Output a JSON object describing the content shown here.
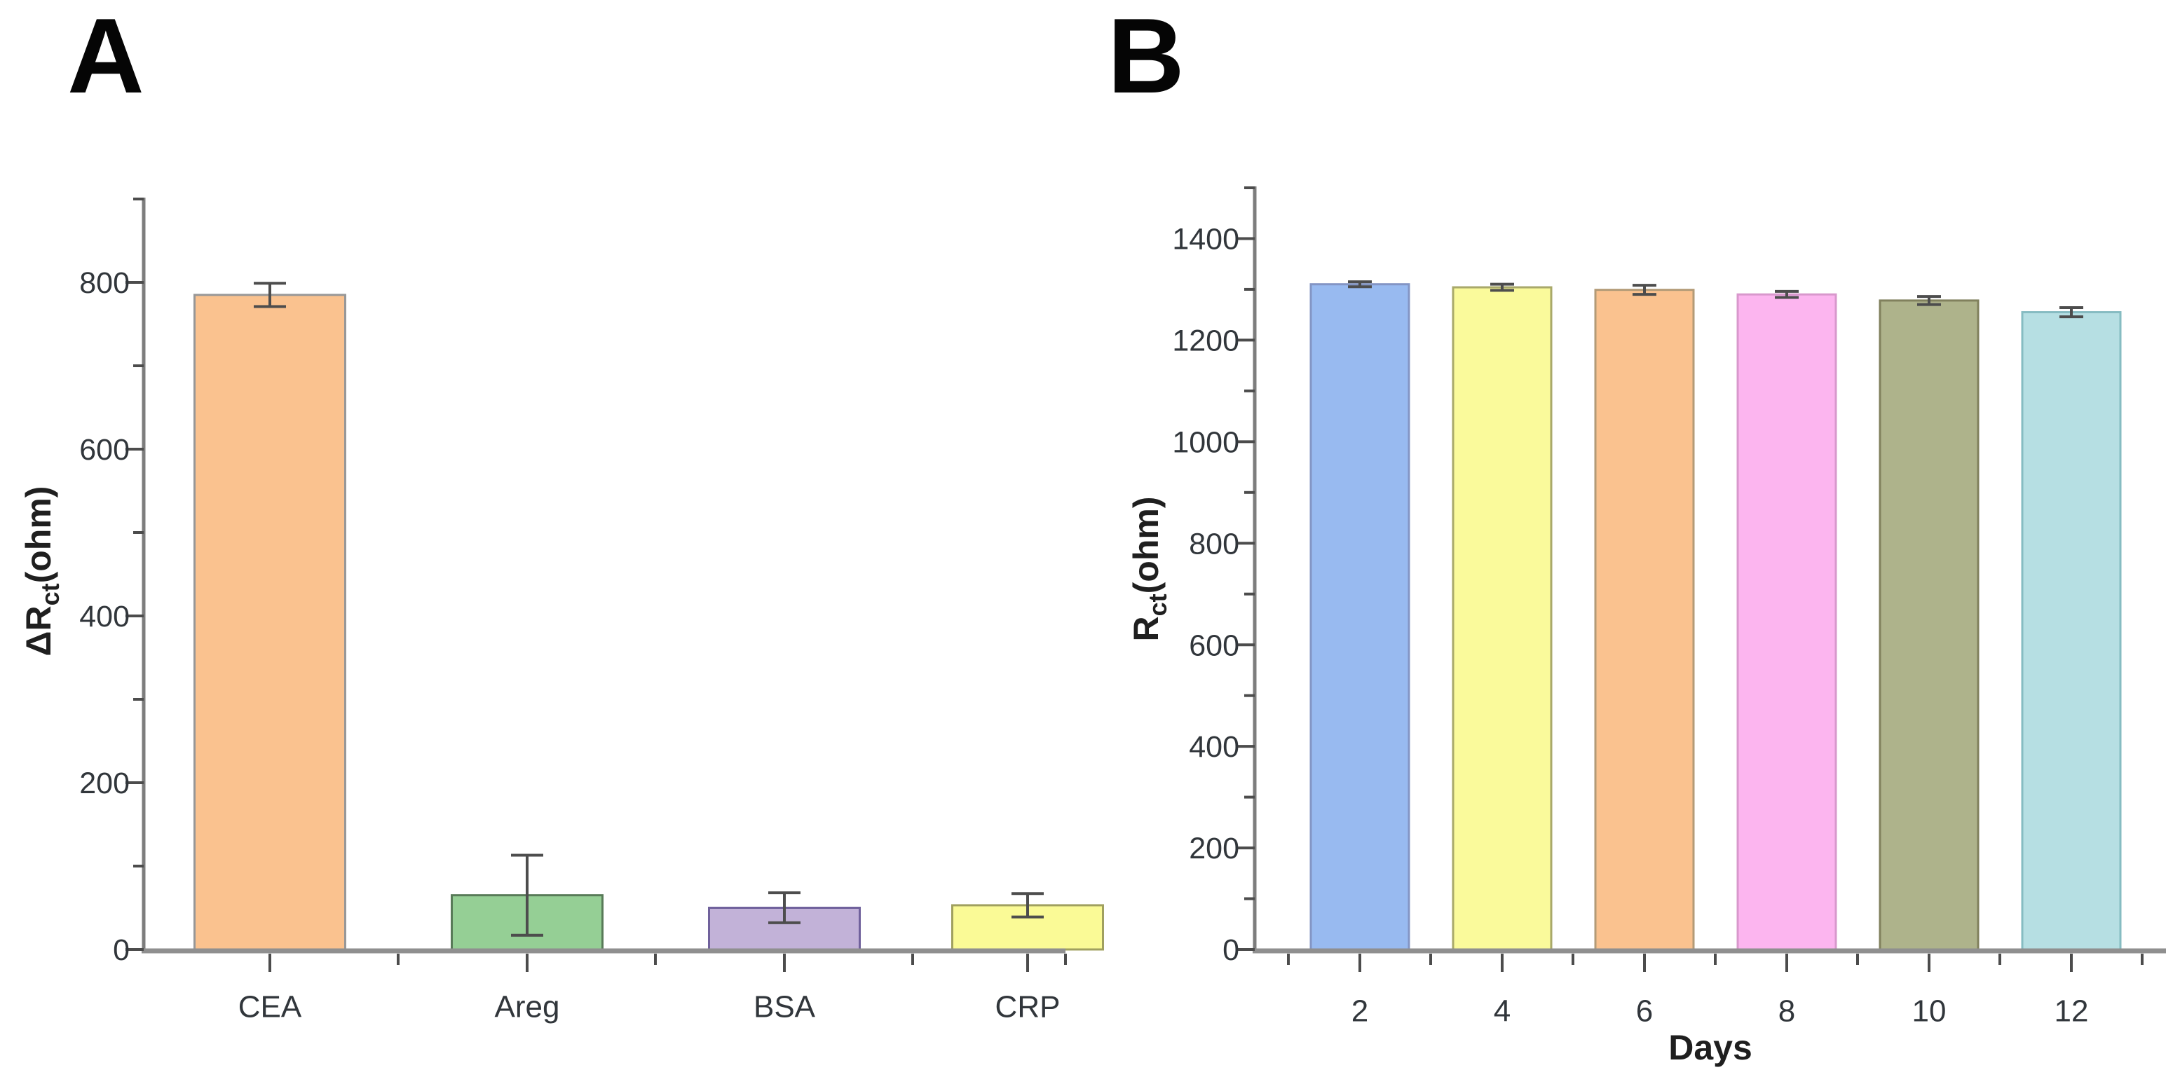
{
  "page": {
    "background": "#ffffff"
  },
  "panels": [
    {
      "label": "A"
    },
    {
      "label": "B"
    }
  ],
  "style": {
    "axis_color": "#7d7d7d",
    "baseline_color": "#8f8f8f",
    "tick_color": "#4c4c4c",
    "tick_label_color": "#31363b",
    "axis_title_color": "#1f1f1f",
    "error_bar_color": "#4d4d4d"
  },
  "chart_data": [
    {
      "type": "bar",
      "panel": "A",
      "title": "",
      "categories": [
        "CEA",
        "Areg",
        "BSA",
        "CRP"
      ],
      "values": [
        785,
        65,
        50,
        53
      ],
      "errors": [
        14,
        48,
        18,
        14
      ],
      "bar_colors": [
        "#FAC28F",
        "#95CF95",
        "#C2B2D8",
        "#FAFA96"
      ],
      "bar_edge_colors": [
        "#979797",
        "#587a58",
        "#70619c",
        "#a0a05f"
      ],
      "xlabel": "",
      "ylabel": "ΔRct(ohm)",
      "ylabel_parts": {
        "pre": "ΔR",
        "sub": "ct",
        "post": "(ohm)"
      },
      "ylim": [
        0,
        900
      ],
      "ytick_major": [
        0,
        200,
        400,
        600,
        800
      ],
      "ytick_minor_step": 100,
      "grid": false,
      "legend": null
    },
    {
      "type": "bar",
      "panel": "B",
      "title": "",
      "categories": [
        "2",
        "4",
        "6",
        "8",
        "10",
        "12"
      ],
      "values": [
        1310,
        1304,
        1299,
        1290,
        1278,
        1255
      ],
      "errors": [
        5,
        6,
        9,
        6,
        8,
        9
      ],
      "bar_colors": [
        "#98BAF0",
        "#FAFA9B",
        "#FAC28F",
        "#FCB5EF",
        "#AEB38B",
        "#B6DFE3"
      ],
      "bar_edge_colors": [
        "#8395c4",
        "#a9a96a",
        "#b39b77",
        "#d898cc",
        "#81815d",
        "#86bcc2"
      ],
      "xlabel": "Days",
      "ylabel": "Rct(ohm)",
      "ylabel_parts": {
        "pre": "R",
        "sub": "ct",
        "post": "(ohm)"
      },
      "ylim": [
        0,
        1500
      ],
      "ytick_major": [
        0,
        200,
        400,
        600,
        800,
        1000,
        1200,
        1400
      ],
      "ytick_minor_step": 100,
      "grid": false,
      "legend": null
    }
  ]
}
